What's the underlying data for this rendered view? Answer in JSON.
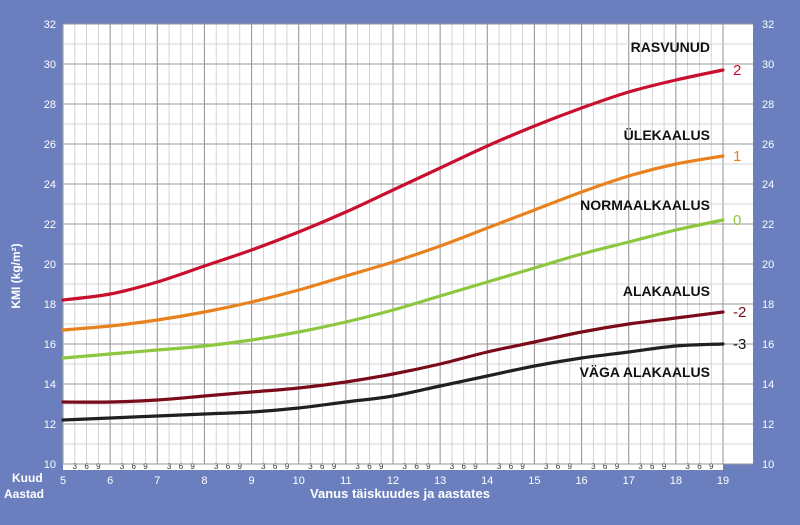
{
  "chart_data": {
    "type": "line",
    "title": "",
    "xlabel": "Vanus täiskuudes ja aastates",
    "ylabel": "KMI (kg/m²)",
    "row_labels": {
      "months": "Kuud",
      "years": "Aastad"
    },
    "xlim": [
      5,
      19
    ],
    "ylim": [
      10,
      32
    ],
    "x_ticks": [
      5,
      6,
      7,
      8,
      9,
      10,
      11,
      12,
      13,
      14,
      15,
      16,
      17,
      18,
      19
    ],
    "y_ticks": [
      10,
      12,
      14,
      16,
      18,
      20,
      22,
      24,
      26,
      28,
      30,
      32
    ],
    "month_ticks": [
      "3",
      "6",
      "9"
    ],
    "grid": true,
    "series": [
      {
        "name": "RASVUNUD",
        "zscore": "2",
        "color": "#c8102e",
        "x": [
          5,
          6,
          7,
          8,
          9,
          10,
          11,
          12,
          13,
          14,
          15,
          16,
          17,
          18,
          19
        ],
        "y": [
          18.2,
          18.5,
          19.1,
          19.9,
          20.7,
          21.6,
          22.6,
          23.7,
          24.8,
          25.9,
          26.9,
          27.8,
          28.6,
          29.2,
          29.7
        ]
      },
      {
        "name": "ÜLEKAALUS",
        "zscore": "1",
        "color": "#e8821e",
        "x": [
          5,
          6,
          7,
          8,
          9,
          10,
          11,
          12,
          13,
          14,
          15,
          16,
          17,
          18,
          19
        ],
        "y": [
          16.7,
          16.9,
          17.2,
          17.6,
          18.1,
          18.7,
          19.4,
          20.1,
          20.9,
          21.8,
          22.7,
          23.6,
          24.4,
          25.0,
          25.4
        ]
      },
      {
        "name": "NORMAALKAALUS",
        "zscore": "0",
        "color": "#8dc63f",
        "x": [
          5,
          6,
          7,
          8,
          9,
          10,
          11,
          12,
          13,
          14,
          15,
          16,
          17,
          18,
          19
        ],
        "y": [
          15.3,
          15.5,
          15.7,
          15.9,
          16.2,
          16.6,
          17.1,
          17.7,
          18.4,
          19.1,
          19.8,
          20.5,
          21.1,
          21.7,
          22.2
        ]
      },
      {
        "name": "ALAKAALUS",
        "zscore": "-2",
        "color": "#7a0c19",
        "x": [
          5,
          6,
          7,
          8,
          9,
          10,
          11,
          12,
          13,
          14,
          15,
          16,
          17,
          18,
          19
        ],
        "y": [
          13.1,
          13.1,
          13.2,
          13.4,
          13.6,
          13.8,
          14.1,
          14.5,
          15.0,
          15.6,
          16.1,
          16.6,
          17.0,
          17.3,
          17.6
        ]
      },
      {
        "name": "VÄGA ALAKAALUS",
        "zscore": "-3",
        "color": "#231f20",
        "x": [
          5,
          6,
          7,
          8,
          9,
          10,
          11,
          12,
          13,
          14,
          15,
          16,
          17,
          18,
          19
        ],
        "y": [
          12.2,
          12.3,
          12.4,
          12.5,
          12.6,
          12.8,
          13.1,
          13.4,
          13.9,
          14.4,
          14.9,
          15.3,
          15.6,
          15.9,
          16.0
        ]
      }
    ]
  }
}
